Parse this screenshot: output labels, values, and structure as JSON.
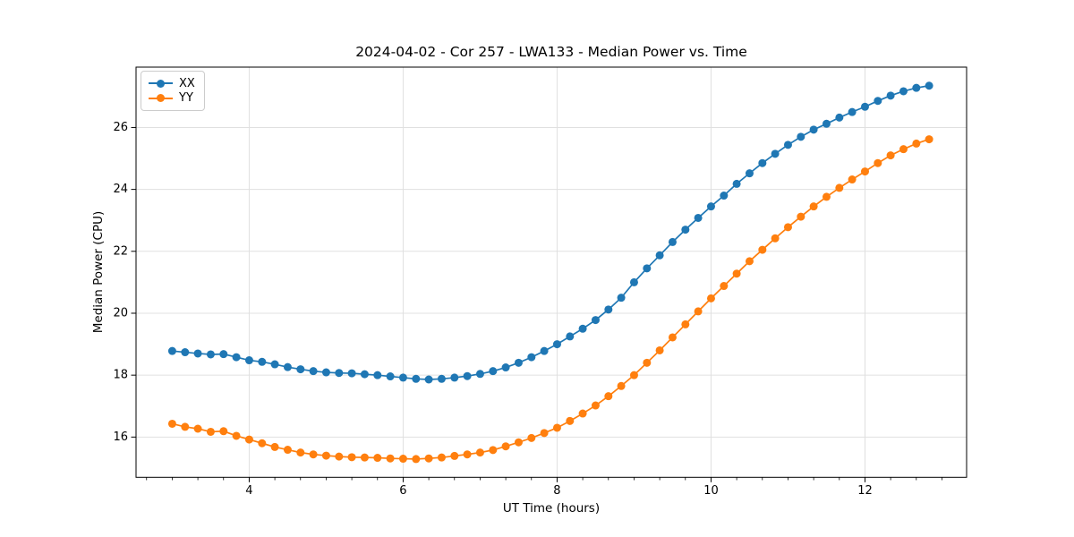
{
  "figure": {
    "title": "2024-04-02 - Cor 257 - LWA133 - Median Power vs. Time"
  },
  "chart_data": {
    "type": "line",
    "title": "2024-04-02 - Cor 257 - LWA133 - Median Power vs. Time",
    "xlabel": "UT Time (hours)",
    "ylabel": "Median Power (CPU)",
    "x": [
      3.0,
      3.167,
      3.333,
      3.5,
      3.667,
      3.833,
      4.0,
      4.167,
      4.333,
      4.5,
      4.667,
      4.833,
      5.0,
      5.167,
      5.333,
      5.5,
      5.667,
      5.833,
      6.0,
      6.167,
      6.333,
      6.5,
      6.667,
      6.833,
      7.0,
      7.167,
      7.333,
      7.5,
      7.667,
      7.833,
      8.0,
      8.167,
      8.333,
      8.5,
      8.667,
      8.833,
      9.0,
      9.167,
      9.333,
      9.5,
      9.667,
      9.833,
      10.0,
      10.167,
      10.333,
      10.5,
      10.667,
      10.833,
      11.0,
      11.167,
      11.333,
      11.5,
      11.667,
      11.833,
      12.0,
      12.167,
      12.333,
      12.5,
      12.667,
      12.833
    ],
    "series": [
      {
        "name": "XX",
        "color": "#1f77b4",
        "values": [
          18.78,
          18.74,
          18.7,
          18.67,
          18.68,
          18.58,
          18.48,
          18.43,
          18.35,
          18.26,
          18.19,
          18.13,
          18.09,
          18.07,
          18.06,
          18.03,
          18.0,
          17.96,
          17.92,
          17.88,
          17.86,
          17.88,
          17.92,
          17.97,
          18.04,
          18.13,
          18.25,
          18.4,
          18.58,
          18.78,
          19.0,
          19.25,
          19.5,
          19.78,
          20.12,
          20.5,
          21.0,
          21.45,
          21.87,
          22.3,
          22.7,
          23.08,
          23.45,
          23.8,
          24.18,
          24.52,
          24.85,
          25.15,
          25.44,
          25.7,
          25.93,
          26.12,
          26.32,
          26.5,
          26.67,
          26.86,
          27.03,
          27.17,
          27.28,
          27.35
        ]
      },
      {
        "name": "YY",
        "color": "#ff7f0e",
        "values": [
          16.43,
          16.33,
          16.27,
          16.17,
          16.19,
          16.04,
          15.92,
          15.8,
          15.68,
          15.59,
          15.5,
          15.44,
          15.4,
          15.37,
          15.35,
          15.34,
          15.33,
          15.31,
          15.3,
          15.29,
          15.31,
          15.34,
          15.39,
          15.44,
          15.5,
          15.58,
          15.7,
          15.83,
          15.97,
          16.13,
          16.3,
          16.52,
          16.76,
          17.02,
          17.32,
          17.65,
          18.0,
          18.4,
          18.8,
          19.22,
          19.64,
          20.06,
          20.48,
          20.88,
          21.28,
          21.68,
          22.05,
          22.42,
          22.78,
          23.12,
          23.45,
          23.76,
          24.05,
          24.32,
          24.58,
          24.85,
          25.1,
          25.3,
          25.48,
          25.62
        ]
      }
    ],
    "xlim": [
      2.53,
      13.32
    ],
    "ylim": [
      14.7,
      27.95
    ],
    "xticks": [
      4,
      6,
      8,
      10,
      12
    ],
    "yticks": [
      16,
      18,
      20,
      22,
      24,
      26
    ],
    "x_minor_step": 0.33333,
    "grid": true,
    "grid_color": "#e0e0e0",
    "legend": {
      "position": "upper left",
      "entries": [
        "XX",
        "YY"
      ]
    },
    "marker": "circle",
    "background": "#ffffff"
  }
}
